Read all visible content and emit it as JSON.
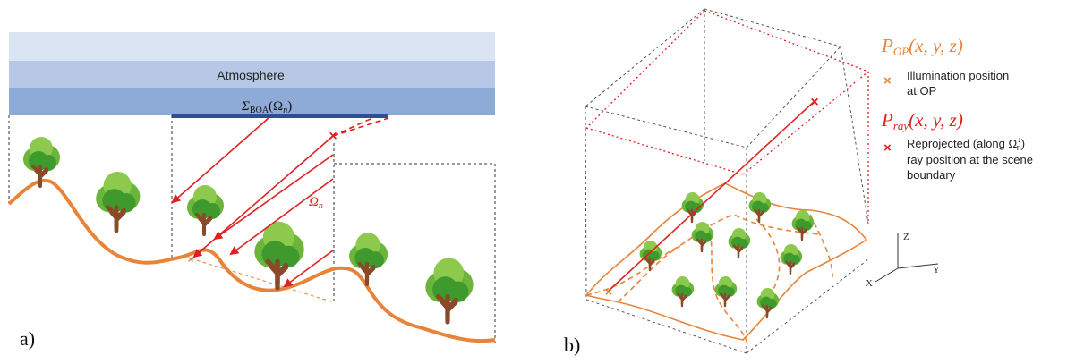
{
  "panel_a": {
    "panel_label": "a)",
    "atmosphere_label": "Atmosphere",
    "boa_symbol": "Σ",
    "boa_sub": "BOA",
    "boa_arg": "(Ω",
    "boa_arg_sub": "n",
    "boa_arg_close": ")",
    "omega_symbol": "Ω",
    "omega_sub": "n",
    "colors": {
      "layer_top": "#dbe4f3",
      "layer_mid": "#b6c8e6",
      "layer_bottom": "#8eabd8",
      "boa_bar": "#2f4f8f",
      "terrain": "#e8843a",
      "ray": "#e02020"
    }
  },
  "panel_b": {
    "panel_label": "b)",
    "legend": {
      "p_op_main": "P",
      "p_op_sub": "OP",
      "p_op_args": "(x, y, z)",
      "illum_marker": "×",
      "illum_line1": "Illumination position",
      "illum_line2": "at OP",
      "p_ray_main": "P",
      "p_ray_sub": "ray",
      "p_ray_args": "(x, y, z)",
      "ray_marker": "×",
      "ray_line1_pre": "Reprojected (along Ω",
      "ray_line1_sup": "↓",
      "ray_line1_sub": "n",
      "ray_line1_post": ")",
      "ray_line2": "ray position at the scene",
      "ray_line3": "boundary"
    },
    "axes": {
      "z": "Z",
      "y": "Y",
      "x": "X"
    },
    "colors": {
      "box": "#555555",
      "dotted_red": "#e02020",
      "terrain": "#e8843a",
      "op_color": "#e8843a",
      "ray_color": "#e02020"
    }
  }
}
